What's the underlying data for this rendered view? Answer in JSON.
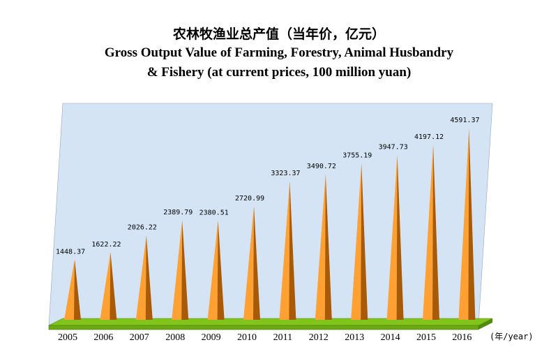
{
  "chart_data": {
    "type": "bar",
    "title_cn": "农林牧渔业总产值（当年价，亿元）",
    "title_en_line1": "Gross Output Value of Farming, Forestry, Animal Husbandry",
    "title_en_line2": "& Fishery (at current prices, 100 million yuan)",
    "x_unit": "(年/year)",
    "categories": [
      "2005",
      "2006",
      "2007",
      "2008",
      "2009",
      "2010",
      "2011",
      "2012",
      "2013",
      "2014",
      "2015",
      "2016"
    ],
    "values": [
      1448.37,
      1622.22,
      2026.22,
      2389.79,
      2380.51,
      2720.99,
      3323.37,
      3490.72,
      3755.19,
      3947.73,
      4197.12,
      4591.37
    ],
    "value_labels": [
      "1448.37",
      "1622.22",
      "2026.22",
      "2389.79",
      "2380.51",
      "2720.99",
      "3323.37",
      "3490.72",
      "3755.19",
      "3947.73",
      "4197.12",
      "4591.37"
    ],
    "ylim": [
      0,
      5000
    ],
    "colors": {
      "wall": "#d4e4f4",
      "floor": "#80c41c",
      "bar_light": "#ffa033",
      "bar_dark": "#a85a06"
    }
  }
}
